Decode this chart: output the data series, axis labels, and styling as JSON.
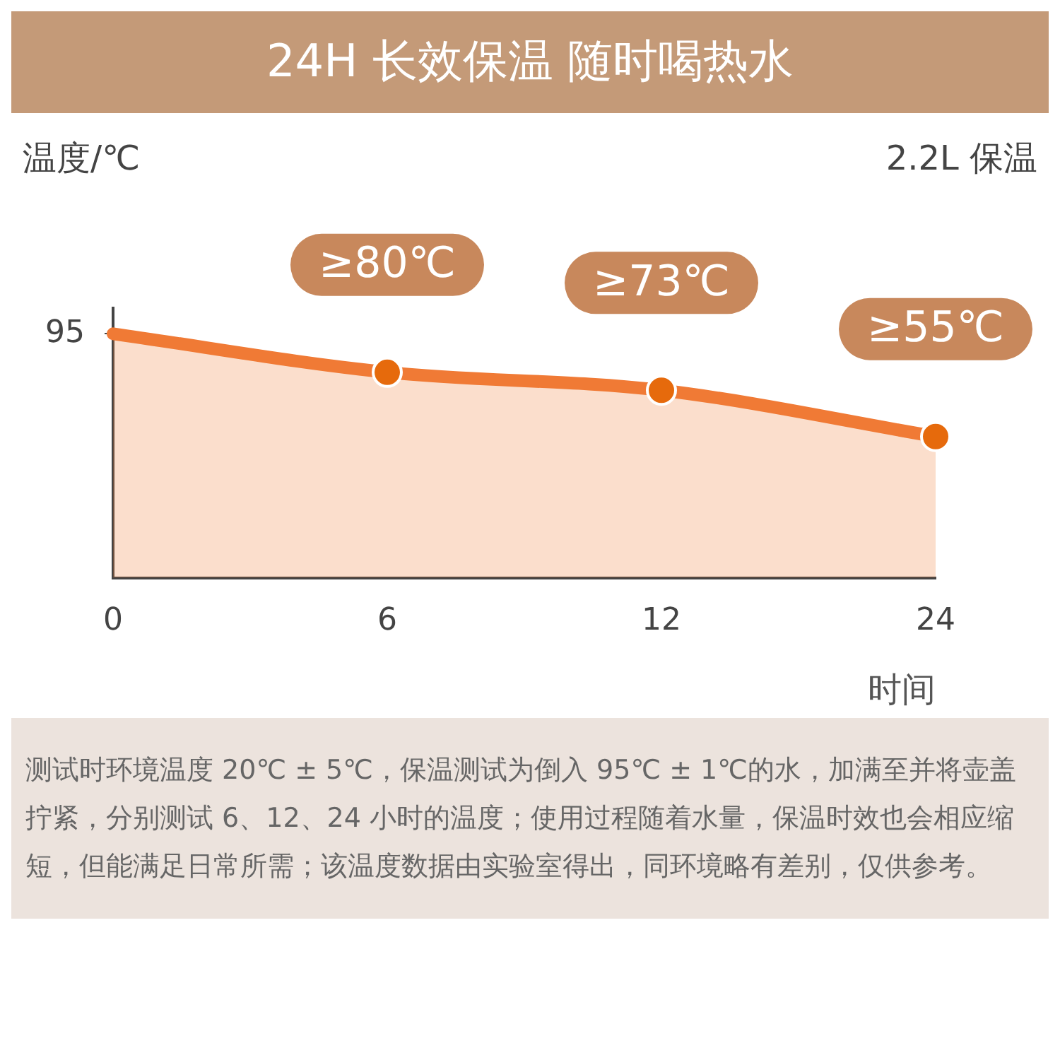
{
  "chart_data": {
    "type": "area",
    "title": "24H 长效保温 随时喝热水",
    "subtitle": "2.2L 保温",
    "xlabel": "时间",
    "ylabel": "温度/℃",
    "categories": [
      "0",
      "6",
      "12",
      "24"
    ],
    "series": [
      {
        "color": "#f07a35",
        "values": [
          95,
          80,
          73,
          55
        ],
        "value_labels": [
          null,
          "≥80℃",
          "≥73℃",
          "≥55℃"
        ]
      }
    ],
    "ylim": [
      0,
      105
    ],
    "yticks": [
      95
    ],
    "grid": false,
    "legend": false,
    "marker": "circle",
    "line_style": "solid",
    "annotations": [
      "测试时环境温度 20℃ ± 5℃，保温测试为倒入 95℃ ± 1℃的水，加满至并将壶盖拧紧，分别测试 6、12、24 小时的温度；使用过程随着水量，保温时效也会相应缩短，但能满足日常所需；该温度数据由实验室得出，同环境略有差别，仅供参考。"
    ]
  }
}
